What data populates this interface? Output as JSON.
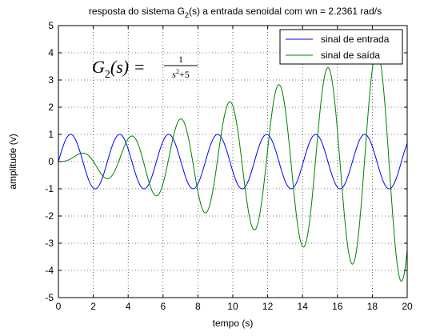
{
  "chart_data": {
    "type": "line",
    "title": {
      "prefix": "resposta do sistema G",
      "subscript": "2",
      "suffix": "(s) a entrada senoidal com wn = 2.2361 rad/s"
    },
    "xlabel": "tempo (s)",
    "ylabel": "amplitude (v)",
    "xlim": [
      0,
      20
    ],
    "ylim": [
      -5,
      5
    ],
    "x_ticks": [
      "0",
      "2",
      "4",
      "6",
      "8",
      "10",
      "12",
      "14",
      "16",
      "18",
      "20"
    ],
    "y_ticks": [
      "-5",
      "-4",
      "-3",
      "-2",
      "-1",
      "0",
      "1",
      "2",
      "3",
      "4",
      "5"
    ],
    "grid": true,
    "legend_position": "top-right",
    "omega_n": 2.2361,
    "series": [
      {
        "name": "sinal de entrada",
        "color": "#0000ff",
        "function": "sin(wn*t)",
        "t_range": [
          0,
          20
        ],
        "samples": 1001
      },
      {
        "name": "sinal de saída",
        "color": "#008000",
        "function": "(sin(wn*t) - wn*t*cos(wn*t)) / (2*wn^2)",
        "t_range": [
          0,
          20
        ],
        "samples": 1001
      }
    ],
    "annotation": {
      "lhs": "G",
      "lhs_sub": "2",
      "lhs_arg": "(s) =",
      "numerator": "1",
      "denominator_base": "s",
      "denominator_exp": "2",
      "denominator_rest": "+5"
    }
  }
}
